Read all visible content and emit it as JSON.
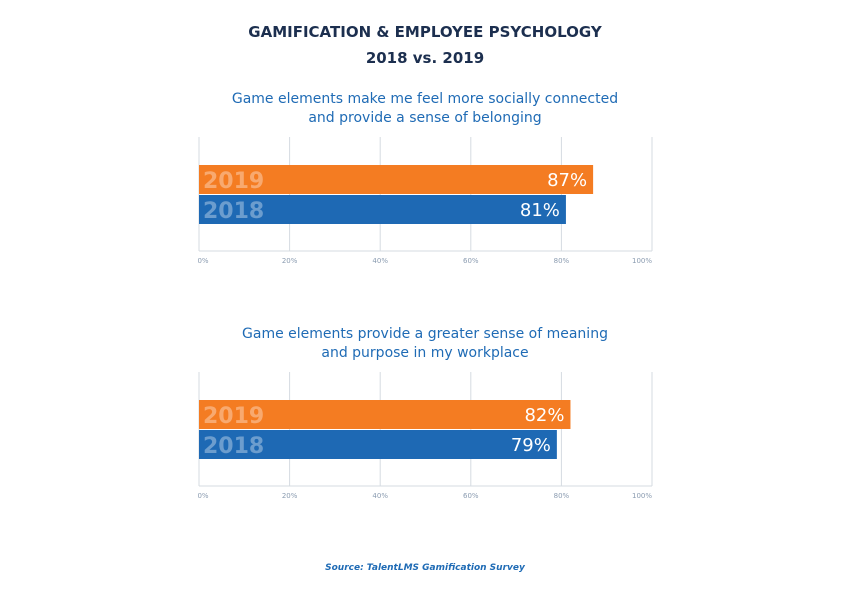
{
  "title_line1": "GAMIFICATION & EMPLOYEE PSYCHOLOGY",
  "title_line2": "2018 vs. 2019",
  "source": "Source: TalentLMS Gamification Survey",
  "colors": {
    "2019": "#f47c22",
    "2018": "#1e69b4",
    "grid": "#d5dbe1",
    "tick": "#8a9bb0"
  },
  "chart_data": [
    {
      "type": "bar",
      "orientation": "horizontal",
      "title_lines": [
        "Game elements make me feel more socially connected",
        "and provide a sense of belonging"
      ],
      "categories": [
        "2019",
        "2018"
      ],
      "values": [
        87,
        81
      ],
      "data_labels": [
        "87%",
        "81%"
      ],
      "xlim": [
        0,
        100
      ],
      "xticks": [
        "0%",
        "20%",
        "40%",
        "60%",
        "80%",
        "100%"
      ],
      "grid": true
    },
    {
      "type": "bar",
      "orientation": "horizontal",
      "title_lines": [
        "Game elements provide a greater sense of meaning",
        "and purpose in my workplace"
      ],
      "categories": [
        "2019",
        "2018"
      ],
      "values": [
        82,
        79
      ],
      "data_labels": [
        "82%",
        "79%"
      ],
      "xlim": [
        0,
        100
      ],
      "xticks": [
        "0%",
        "20%",
        "40%",
        "60%",
        "80%",
        "100%"
      ],
      "grid": true
    }
  ]
}
